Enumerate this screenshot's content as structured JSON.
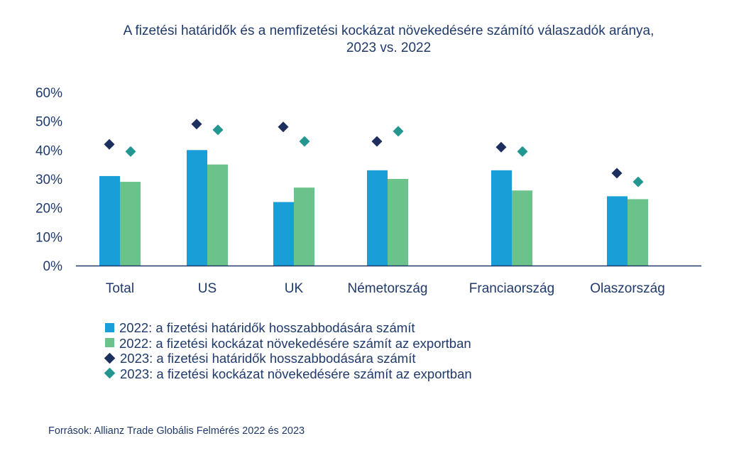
{
  "title_line1": "A fizetési határidők és a nemfizetési kockázat növekedésére számító válaszadók aránya,",
  "title_line2": "2023 vs. 2022",
  "source": "Források: Allianz Trade Globális Felmérés 2022 és 2023",
  "colors": {
    "bar_2022_terms": "#1a9ed8",
    "bar_2022_risk": "#6cc28b",
    "diamond_2023_terms": "#1c2f5e",
    "diamond_2023_risk": "#22968f",
    "axis": "#1f3a6b",
    "text": "#1f3a6b"
  },
  "legend": [
    {
      "label": "2022: a fizetési határidők hosszabbodására számít",
      "shape": "square",
      "color": "#1a9ed8"
    },
    {
      "label": "2022: a fizetési kockázat növekedésére számít az exportban",
      "shape": "square",
      "color": "#6cc28b"
    },
    {
      "label": "2023: a fizetési határidők hosszabbodására számít",
      "shape": "diamond",
      "color": "#1c2f5e"
    },
    {
      "label": "2023: a fizetési kockázat növekedésére számít az exportban",
      "shape": "diamond",
      "color": "#22968f"
    }
  ],
  "chart_data": {
    "type": "bar",
    "title": "A fizetési határidők és a nemfizetési kockázat növekedésére számító válaszadók aránya, 2023 vs. 2022",
    "categories": [
      "Total",
      "US",
      "UK",
      "Németország",
      "Franciaország",
      "Olaszország"
    ],
    "y_ticks": [
      "0%",
      "10%",
      "20%",
      "30%",
      "40%",
      "50%",
      "60%"
    ],
    "ylim": [
      0,
      60
    ],
    "grid": false,
    "legend_position": "bottom-left",
    "series": [
      {
        "name": "2022: a fizetési határidők hosszabbodására számít",
        "type": "bar",
        "color": "#1a9ed8",
        "values": [
          31,
          40,
          22,
          33,
          33,
          24
        ]
      },
      {
        "name": "2022: a fizetési kockázat növekedésére számít az exportban",
        "type": "bar",
        "color": "#6cc28b",
        "values": [
          29,
          35,
          27,
          30,
          26,
          23
        ]
      },
      {
        "name": "2023: a fizetési határidők hosszabbodására számít",
        "type": "diamond",
        "color": "#1c2f5e",
        "values": [
          42,
          49,
          48,
          43,
          41,
          32
        ]
      },
      {
        "name": "2023: a fizetési kockázat növekedésére számít az exportban",
        "type": "diamond",
        "color": "#22968f",
        "values": [
          39.5,
          47,
          43,
          46.5,
          39.5,
          29
        ]
      }
    ]
  }
}
